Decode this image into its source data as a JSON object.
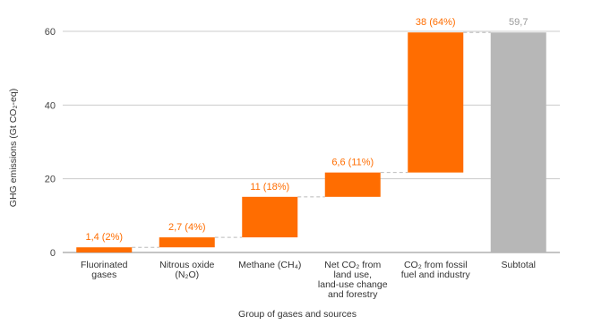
{
  "chart_data": {
    "type": "bar",
    "subtype": "waterfall",
    "xlabel": "Group of gases and sources",
    "ylabel": "GHG emissions (Gt CO₂-eq)",
    "ylim": [
      0,
      60
    ],
    "yticks": [
      0,
      20,
      40,
      60
    ],
    "grid": true,
    "categories": [
      [
        "Fluorinated",
        "gases"
      ],
      [
        "Nitrous oxide",
        "(N₂O)"
      ],
      [
        "Methane (CH₄)"
      ],
      [
        "Net CO₂ from",
        "land use,",
        "land-use change",
        "and forestry"
      ],
      [
        "CO₂ from fossil",
        "fuel and industry"
      ],
      [
        "Subtotal"
      ]
    ],
    "steps": [
      {
        "start": 0,
        "end": 1.4,
        "label": "1,4 (2%)",
        "kind": "increase"
      },
      {
        "start": 1.4,
        "end": 4.1,
        "label": "2,7 (4%)",
        "kind": "increase"
      },
      {
        "start": 4.1,
        "end": 15.1,
        "label": "11 (18%)",
        "kind": "increase"
      },
      {
        "start": 15.1,
        "end": 21.7,
        "label": "6,6 (11%)",
        "kind": "increase"
      },
      {
        "start": 21.7,
        "end": 59.7,
        "label": "38 (64%)",
        "kind": "increase"
      },
      {
        "start": 0,
        "end": 59.7,
        "label": "59,7",
        "kind": "total"
      }
    ],
    "colors": {
      "increase": "#ff6d01",
      "total": "#b7b7b7",
      "increase_label": "#ff6d01",
      "total_label": "#999999",
      "grid": "#cccccc",
      "connector": "#bbbbbb"
    }
  }
}
